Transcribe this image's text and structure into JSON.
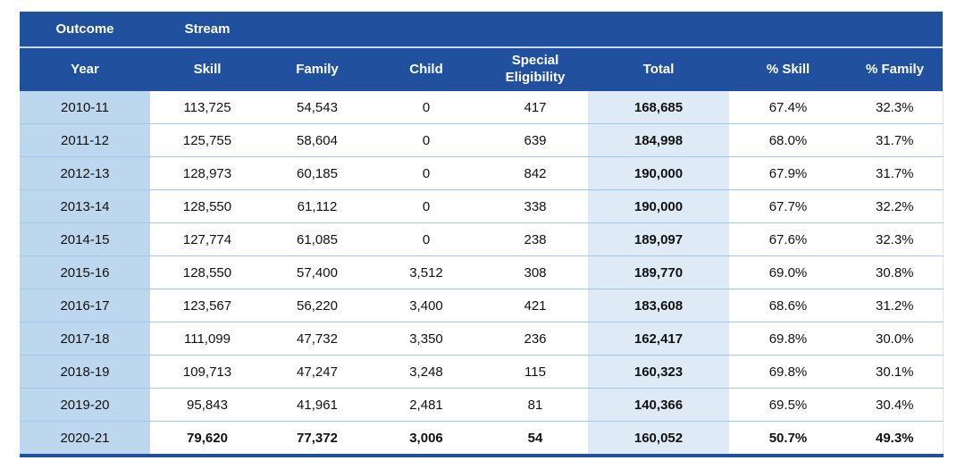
{
  "colors": {
    "header_bg": "#21519E",
    "header_text": "#FFFFFF",
    "year_column_bg": "#BDD7EE",
    "total_column_bg": "#DEEBF7",
    "row_border": "#A4C6E8",
    "bottom_border": "#21519E"
  },
  "table": {
    "group_headers": {
      "outcome_label": "Outcome",
      "stream_label": "Stream"
    },
    "column_keys": [
      "year",
      "skill",
      "family",
      "child",
      "special_eligibility",
      "total",
      "pct_skill",
      "pct_family"
    ],
    "columns": [
      "Year",
      "Skill",
      "Family",
      "Child",
      "Special Eligibility",
      "Total",
      "% Skill",
      "% Family"
    ],
    "rows": [
      [
        "2010-11",
        "113,725",
        "54,543",
        "0",
        "417",
        "168,685",
        "67.4%",
        "32.3%"
      ],
      [
        "2011-12",
        "125,755",
        "58,604",
        "0",
        "639",
        "184,998",
        "68.0%",
        "31.7%"
      ],
      [
        "2012-13",
        "128,973",
        "60,185",
        "0",
        "842",
        "190,000",
        "67.9%",
        "31.7%"
      ],
      [
        "2013-14",
        "128,550",
        "61,112",
        "0",
        "338",
        "190,000",
        "67.7%",
        "32.2%"
      ],
      [
        "2014-15",
        "127,774",
        "61,085",
        "0",
        "238",
        "189,097",
        "67.6%",
        "32.3%"
      ],
      [
        "2015-16",
        "128,550",
        "57,400",
        "3,512",
        "308",
        "189,770",
        "69.0%",
        "30.8%"
      ],
      [
        "2016-17",
        "123,567",
        "56,220",
        "3,400",
        "421",
        "183,608",
        "68.6%",
        "31.2%"
      ],
      [
        "2017-18",
        "111,099",
        "47,732",
        "3,350",
        "236",
        "162,417",
        "69.8%",
        "30.0%"
      ],
      [
        "2018-19",
        "109,713",
        "47,247",
        "3,248",
        "115",
        "160,323",
        "69.8%",
        "30.1%"
      ],
      [
        "2019-20",
        "95,843",
        "41,961",
        "2,481",
        "81",
        "140,366",
        "69.5%",
        "30.4%"
      ],
      [
        "2020-21",
        "79,620",
        "77,372",
        "3,006",
        "54",
        "160,052",
        "50.7%",
        "49.3%"
      ]
    ]
  },
  "chart_data": {
    "type": "table",
    "categories": [
      "2010-11",
      "2011-12",
      "2012-13",
      "2013-14",
      "2014-15",
      "2015-16",
      "2016-17",
      "2017-18",
      "2018-19",
      "2019-20",
      "2020-21"
    ],
    "series": [
      {
        "name": "Skill",
        "values": [
          113725,
          125755,
          128973,
          128550,
          127774,
          128550,
          123567,
          111099,
          109713,
          95843,
          79620
        ]
      },
      {
        "name": "Family",
        "values": [
          54543,
          58604,
          60185,
          61112,
          61085,
          57400,
          56220,
          47732,
          47247,
          41961,
          77372
        ]
      },
      {
        "name": "Child",
        "values": [
          0,
          0,
          0,
          0,
          0,
          3512,
          3400,
          3350,
          3248,
          2481,
          3006
        ]
      },
      {
        "name": "Special Eligibility",
        "values": [
          417,
          639,
          842,
          338,
          238,
          308,
          421,
          236,
          115,
          81,
          54
        ]
      },
      {
        "name": "Total",
        "values": [
          168685,
          184998,
          190000,
          190000,
          189097,
          189770,
          183608,
          162417,
          160323,
          140366,
          160052
        ]
      },
      {
        "name": "% Skill",
        "values": [
          67.4,
          68.0,
          67.9,
          67.7,
          67.6,
          69.0,
          68.6,
          69.8,
          69.8,
          69.5,
          50.7
        ]
      },
      {
        "name": "% Family",
        "values": [
          32.3,
          31.7,
          31.7,
          32.2,
          32.3,
          30.8,
          31.2,
          30.0,
          30.1,
          30.4,
          49.3
        ]
      }
    ],
    "column_headers": [
      "Year",
      "Skill",
      "Family",
      "Child",
      "Special Eligibility",
      "Total",
      "% Skill",
      "% Family"
    ],
    "group_headers": [
      "Outcome",
      "Stream"
    ]
  }
}
